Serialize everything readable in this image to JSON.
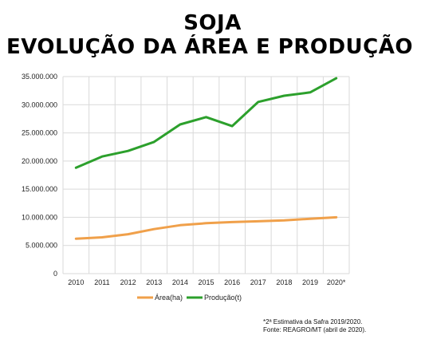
{
  "title_line1": "SOJA",
  "title_line2": "EVOLUÇÃO DA ÁREA E PRODUÇÃO",
  "note_line1": "*2ª Estimativa da Safra 2019/2020.",
  "note_line2": "Fonte: REAGRO/MT (abril de 2020).",
  "colors": {
    "area": "#f0a04a",
    "producao": "#2ca02c",
    "grid": "#d9d9d9"
  },
  "chart_data": {
    "type": "line",
    "categories": [
      "2010",
      "2011",
      "2012",
      "2013",
      "2014",
      "2015",
      "2016",
      "2017",
      "2018",
      "2019",
      "2020*"
    ],
    "series": [
      {
        "name": "Área(ha)",
        "values": [
          6200000,
          6450000,
          7000000,
          7900000,
          8600000,
          8950000,
          9150000,
          9300000,
          9450000,
          9750000,
          10000000
        ]
      },
      {
        "name": "Produção(t)",
        "values": [
          18800000,
          20800000,
          21800000,
          23400000,
          26500000,
          27800000,
          26200000,
          30500000,
          31600000,
          32200000,
          34700000
        ]
      }
    ],
    "yticks": [
      "0",
      "5.000.000",
      "10.000.000",
      "15.000.000",
      "20.000.000",
      "25.000.000",
      "30.000.000",
      "35.000.000"
    ],
    "ylim": [
      0,
      35000000
    ],
    "grid": true,
    "legend_position": "bottom"
  }
}
